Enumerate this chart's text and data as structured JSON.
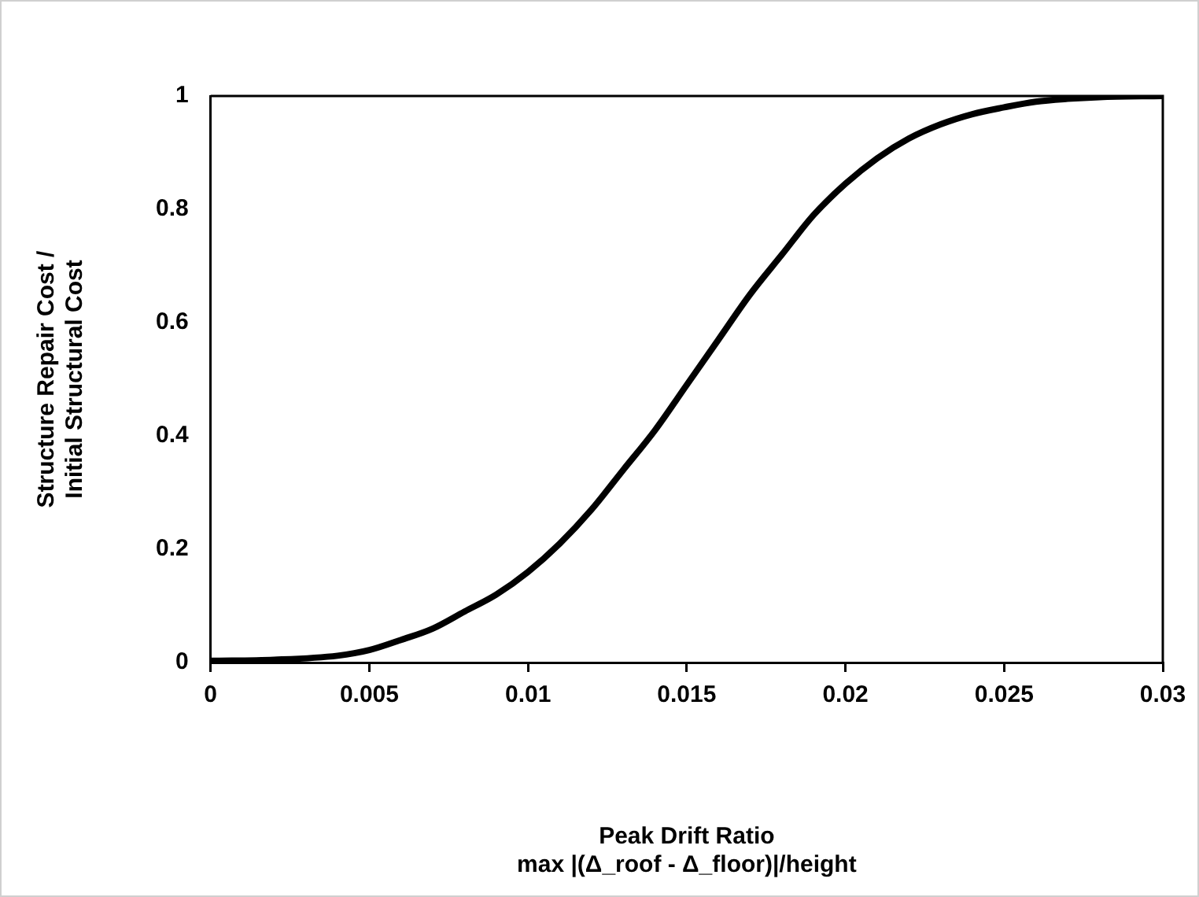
{
  "chart_data": {
    "type": "line",
    "xlabel": "Peak Drift Ratio\nmax |(Δ_roof - Δ_floor)|/height",
    "ylabel": "Structure Repair Cost /\nInitial Structural Cost",
    "x": [
      0,
      0.002,
      0.004,
      0.005,
      0.006,
      0.007,
      0.008,
      0.009,
      0.01,
      0.011,
      0.012,
      0.013,
      0.014,
      0.015,
      0.016,
      0.017,
      0.018,
      0.019,
      0.02,
      0.021,
      0.022,
      0.023,
      0.024,
      0.025,
      0.026,
      0.027,
      0.028,
      0.03
    ],
    "series": [
      {
        "color": "#000000",
        "values": [
          0.003,
          0.005,
          0.012,
          0.022,
          0.04,
          0.06,
          0.09,
          0.12,
          0.16,
          0.21,
          0.27,
          0.34,
          0.41,
          0.49,
          0.57,
          0.65,
          0.72,
          0.79,
          0.845,
          0.89,
          0.925,
          0.95,
          0.968,
          0.98,
          0.99,
          0.995,
          0.998,
          1
        ]
      }
    ],
    "xlim": [
      0,
      0.03
    ],
    "xticks": [
      0,
      0.005,
      0.01,
      0.015,
      0.02,
      0.025,
      0.03
    ],
    "ylim": [
      0,
      1
    ],
    "yticks": [
      0,
      0.2,
      0.4,
      0.6,
      0.8,
      1
    ],
    "grid": false,
    "legend": false,
    "marker": "none",
    "line_style": "solid"
  }
}
